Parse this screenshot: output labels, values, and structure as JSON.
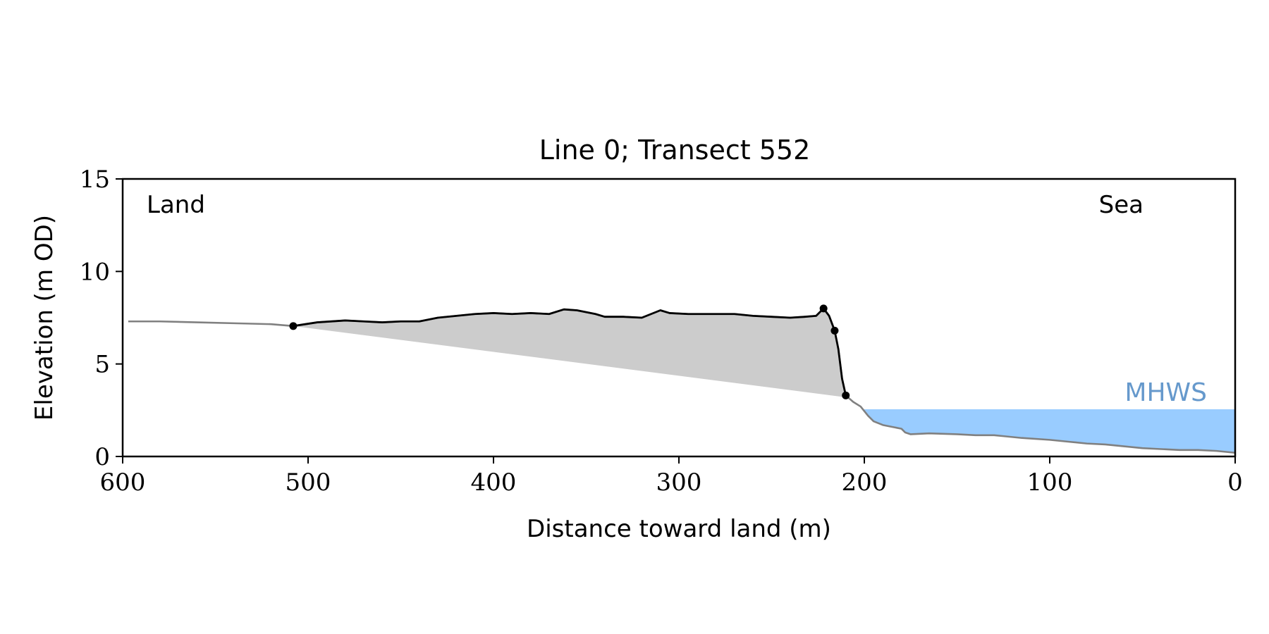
{
  "chart_data": {
    "type": "area",
    "title": "Line 0; Transect 552",
    "xlabel": "Distance toward land (m)",
    "ylabel": "Elevation (m OD)",
    "xlim": [
      600,
      0
    ],
    "ylim": [
      0,
      15
    ],
    "x_ticks": [
      600,
      500,
      400,
      300,
      200,
      100,
      0
    ],
    "y_ticks": [
      0,
      5,
      10,
      15
    ],
    "grid": false,
    "annotations": {
      "land": "Land",
      "sea": "Sea",
      "mhws_label": "MHWS"
    },
    "mhws": {
      "value": 2.55,
      "x_start": 200,
      "x_end": 0
    },
    "profile": {
      "x": [
        597,
        580,
        560,
        540,
        520,
        508,
        495,
        480,
        470,
        460,
        450,
        440,
        430,
        420,
        410,
        400,
        390,
        380,
        370,
        362,
        355,
        345,
        340,
        330,
        320,
        315,
        310,
        305,
        295,
        285,
        270,
        260,
        250,
        240,
        232,
        226,
        222,
        219,
        216,
        214,
        212,
        210,
        206,
        202,
        198,
        195,
        190,
        185,
        180,
        178,
        175,
        165,
        150,
        140,
        130,
        125,
        115,
        100,
        90,
        80,
        70,
        60,
        50,
        40,
        30,
        20,
        10,
        0
      ],
      "y": [
        7.3,
        7.3,
        7.25,
        7.2,
        7.15,
        7.05,
        7.25,
        7.35,
        7.3,
        7.25,
        7.3,
        7.3,
        7.5,
        7.6,
        7.7,
        7.75,
        7.7,
        7.75,
        7.7,
        7.95,
        7.9,
        7.7,
        7.55,
        7.55,
        7.5,
        7.7,
        7.9,
        7.75,
        7.7,
        7.7,
        7.7,
        7.6,
        7.55,
        7.5,
        7.55,
        7.6,
        8.0,
        7.6,
        6.8,
        5.8,
        4.2,
        3.3,
        2.95,
        2.7,
        2.2,
        1.9,
        1.7,
        1.6,
        1.5,
        1.3,
        1.2,
        1.25,
        1.2,
        1.15,
        1.15,
        1.1,
        1.0,
        0.9,
        0.8,
        0.7,
        0.65,
        0.55,
        0.45,
        0.4,
        0.35,
        0.35,
        0.3,
        0.2
      ]
    },
    "dune_segment": {
      "x_start": 508,
      "x_end": 210
    },
    "toe_line": {
      "x": [
        508,
        210
      ],
      "y": [
        7.05,
        3.2
      ]
    },
    "key_points": {
      "x": [
        508,
        222,
        216,
        210
      ],
      "y": [
        7.05,
        8.0,
        6.8,
        3.3
      ]
    },
    "colors": {
      "profile_outer": "#808080",
      "profile_dune": "#000000",
      "dune_fill": "#cccccc",
      "mhws_fill": "#99ccff",
      "mhws_text": "#6699cc",
      "axes": "#000000"
    }
  }
}
